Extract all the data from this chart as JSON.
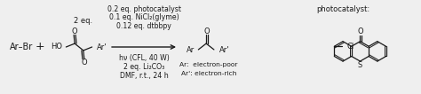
{
  "figsize": [
    4.74,
    1.06
  ],
  "dpi": 100,
  "bg_color": "#efefef",
  "text_color": "#1a1a1a",
  "font_family": "DejaVu Sans",
  "fs_main": 7.0,
  "fs_small": 6.0,
  "fs_cond": 5.6,
  "reactant1": "Ar–Br",
  "plus": "+",
  "eq_label": "2 eq.",
  "cond_top": [
    "0.2 eq. photocatalyst",
    "0.1 eq. NiCl₂(glyme)",
    "0.12 eq. dtbbpy"
  ],
  "cond_bot": [
    "hν (CFL, 40 W)",
    "2 eq. Li₂CO₃",
    "DMF, r.t., 24 h"
  ],
  "prod_label1": "Ar:  electron-poor",
  "prod_label2": "Ar': electron-rich",
  "photocatalyst_label": "photocatalyst:"
}
